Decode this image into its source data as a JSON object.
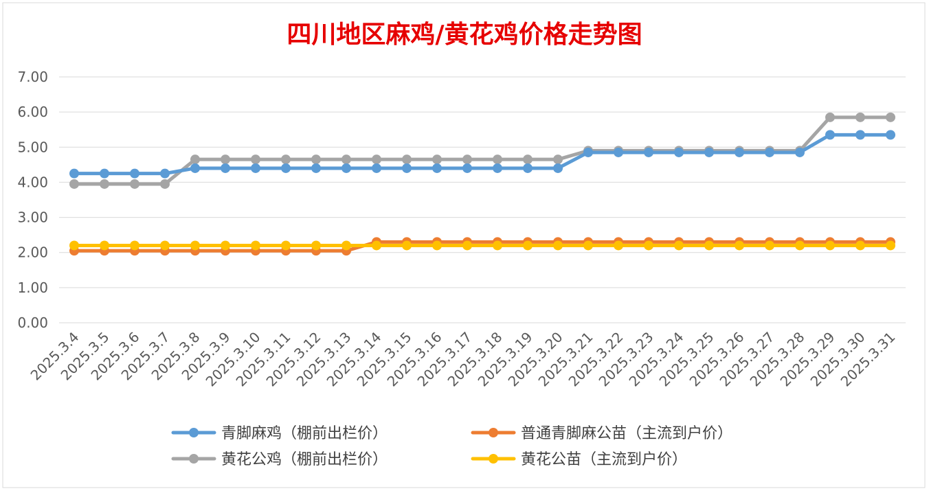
{
  "chart_data": {
    "type": "line",
    "title": "四川地区麻鸡/黄花鸡价格走势图",
    "title_color": "#e60000",
    "categories": [
      "2025.3.4",
      "2025.3.5",
      "2025.3.6",
      "2025.3.7",
      "2025.3.8",
      "2025.3.9",
      "2025.3.10",
      "2025.3.11",
      "2025.3.12",
      "2025.3.13",
      "2025.3.14",
      "2025.3.15",
      "2025.3.16",
      "2025.3.17",
      "2025.3.18",
      "2025.3.19",
      "2025.3.20",
      "2025.3.21",
      "2025.3.22",
      "2025.3.23",
      "2025.3.24",
      "2025.3.25",
      "2025.3.26",
      "2025.3.27",
      "2025.3.28",
      "2025.3.29",
      "2025.3.30",
      "2025.3.31"
    ],
    "ylim": [
      0,
      7
    ],
    "yticks": [
      "0.00",
      "1.00",
      "2.00",
      "3.00",
      "4.00",
      "5.00",
      "6.00",
      "7.00"
    ],
    "grid": true,
    "legend_position": "bottom",
    "series": [
      {
        "name": "青脚麻鸡（棚前出栏价）",
        "color": "#5b9bd5",
        "values": [
          4.25,
          4.25,
          4.25,
          4.25,
          4.4,
          4.4,
          4.4,
          4.4,
          4.4,
          4.4,
          4.4,
          4.4,
          4.4,
          4.4,
          4.4,
          4.4,
          4.4,
          4.85,
          4.85,
          4.85,
          4.85,
          4.85,
          4.85,
          4.85,
          4.85,
          5.35,
          5.35,
          5.35
        ]
      },
      {
        "name": "普通青脚麻公苗（主流到户价）",
        "color": "#ed7d31",
        "values": [
          2.05,
          2.05,
          2.05,
          2.05,
          2.05,
          2.05,
          2.05,
          2.05,
          2.05,
          2.05,
          2.3,
          2.3,
          2.3,
          2.3,
          2.3,
          2.3,
          2.3,
          2.3,
          2.3,
          2.3,
          2.3,
          2.3,
          2.3,
          2.3,
          2.3,
          2.3,
          2.3,
          2.3
        ]
      },
      {
        "name": "黄花公鸡（棚前出栏价）",
        "color": "#a5a5a5",
        "values": [
          3.95,
          3.95,
          3.95,
          3.95,
          4.65,
          4.65,
          4.65,
          4.65,
          4.65,
          4.65,
          4.65,
          4.65,
          4.65,
          4.65,
          4.65,
          4.65,
          4.65,
          4.9,
          4.9,
          4.9,
          4.9,
          4.9,
          4.9,
          4.9,
          4.9,
          5.85,
          5.85,
          5.85
        ]
      },
      {
        "name": "黄花公苗（主流到户价）",
        "color": "#ffc000",
        "values": [
          2.2,
          2.2,
          2.2,
          2.2,
          2.2,
          2.2,
          2.2,
          2.2,
          2.2,
          2.2,
          2.2,
          2.2,
          2.2,
          2.2,
          2.2,
          2.2,
          2.2,
          2.2,
          2.2,
          2.2,
          2.2,
          2.2,
          2.2,
          2.2,
          2.2,
          2.2,
          2.2,
          2.2
        ]
      }
    ]
  }
}
